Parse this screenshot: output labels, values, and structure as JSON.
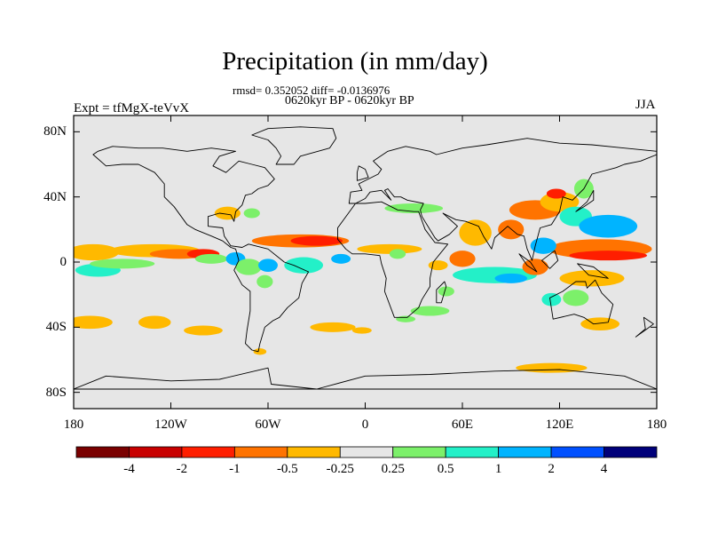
{
  "title": "Precipitation (in mm/day)",
  "stats_line": "rmsd= 0.352052 diff= -0.0136976",
  "period_line": "0620kyr BP - 0620kyr BP",
  "experiment": "Expt = tfMgX-teVvX",
  "season": "JJA",
  "map": {
    "projection": "cylindrical-equidistant",
    "lon_range": [
      -180,
      180
    ],
    "lat_range": [
      -90,
      90
    ],
    "background_color": "#e6e6e6",
    "y_ticks": [
      {
        "lat": 80,
        "label": "80N"
      },
      {
        "lat": 40,
        "label": "40N"
      },
      {
        "lat": 0,
        "label": "0"
      },
      {
        "lat": -40,
        "label": "40S"
      },
      {
        "lat": -80,
        "label": "80S"
      }
    ],
    "x_ticks": [
      {
        "lon": -180,
        "label": "180"
      },
      {
        "lon": -120,
        "label": "120W"
      },
      {
        "lon": -60,
        "label": "60W"
      },
      {
        "lon": 0,
        "label": "0"
      },
      {
        "lon": 60,
        "label": "60E"
      },
      {
        "lon": 120,
        "label": "120E"
      },
      {
        "lon": 180,
        "label": "180"
      }
    ]
  },
  "colorbar": {
    "colors": [
      "#7a0000",
      "#c80000",
      "#ff1e00",
      "#ff7300",
      "#ffb900",
      "#e6e6e6",
      "#7cf06a",
      "#23f0c8",
      "#00b4ff",
      "#0050ff",
      "#00007a"
    ],
    "labels": [
      "-4",
      "-2",
      "-1",
      "-0.5",
      "-0.25",
      "0.25",
      "0.5",
      "1",
      "2",
      "4"
    ]
  },
  "anomaly_regions": [
    {
      "lon": -168,
      "lat": 6,
      "rx": 16,
      "ry": 5,
      "color": "#ffb900"
    },
    {
      "lon": -130,
      "lat": 7,
      "rx": 28,
      "ry": 4,
      "color": "#ffb900"
    },
    {
      "lon": -115,
      "lat": 5,
      "rx": 18,
      "ry": 3,
      "color": "#ff7300"
    },
    {
      "lon": -100,
      "lat": 5,
      "rx": 10,
      "ry": 3,
      "color": "#ff1e00"
    },
    {
      "lon": -165,
      "lat": -5,
      "rx": 14,
      "ry": 4,
      "color": "#23f0c8"
    },
    {
      "lon": -150,
      "lat": -1,
      "rx": 20,
      "ry": 3,
      "color": "#7cf06a"
    },
    {
      "lon": -95,
      "lat": 2,
      "rx": 10,
      "ry": 3,
      "color": "#7cf06a"
    },
    {
      "lon": -80,
      "lat": 2,
      "rx": 6,
      "ry": 4,
      "color": "#00b4ff"
    },
    {
      "lon": -72,
      "lat": -3,
      "rx": 8,
      "ry": 5,
      "color": "#7cf06a"
    },
    {
      "lon": -60,
      "lat": -2,
      "rx": 6,
      "ry": 4,
      "color": "#00b4ff"
    },
    {
      "lon": -62,
      "lat": -12,
      "rx": 5,
      "ry": 4,
      "color": "#7cf06a"
    },
    {
      "lon": -85,
      "lat": 30,
      "rx": 8,
      "ry": 4,
      "color": "#ffb900"
    },
    {
      "lon": -70,
      "lat": 30,
      "rx": 5,
      "ry": 3,
      "color": "#7cf06a"
    },
    {
      "lon": -40,
      "lat": 13,
      "rx": 30,
      "ry": 4,
      "color": "#ff7300"
    },
    {
      "lon": -30,
      "lat": 13,
      "rx": 16,
      "ry": 3,
      "color": "#ff1e00"
    },
    {
      "lon": -38,
      "lat": -2,
      "rx": 12,
      "ry": 5,
      "color": "#23f0c8"
    },
    {
      "lon": -15,
      "lat": 2,
      "rx": 6,
      "ry": 3,
      "color": "#00b4ff"
    },
    {
      "lon": 15,
      "lat": 8,
      "rx": 20,
      "ry": 3,
      "color": "#ffb900"
    },
    {
      "lon": 30,
      "lat": 33,
      "rx": 18,
      "ry": 3,
      "color": "#7cf06a"
    },
    {
      "lon": 20,
      "lat": 5,
      "rx": 5,
      "ry": 3,
      "color": "#7cf06a"
    },
    {
      "lon": 45,
      "lat": -2,
      "rx": 6,
      "ry": 3,
      "color": "#ffb900"
    },
    {
      "lon": 50,
      "lat": -18,
      "rx": 5,
      "ry": 3,
      "color": "#7cf06a"
    },
    {
      "lon": 40,
      "lat": -30,
      "rx": 12,
      "ry": 3,
      "color": "#7cf06a"
    },
    {
      "lon": 68,
      "lat": 18,
      "rx": 10,
      "ry": 8,
      "color": "#ffb900"
    },
    {
      "lon": 60,
      "lat": 2,
      "rx": 8,
      "ry": 5,
      "color": "#ff7300"
    },
    {
      "lon": 80,
      "lat": -8,
      "rx": 26,
      "ry": 5,
      "color": "#23f0c8"
    },
    {
      "lon": 90,
      "lat": -10,
      "rx": 10,
      "ry": 3,
      "color": "#00b4ff"
    },
    {
      "lon": 90,
      "lat": 20,
      "rx": 8,
      "ry": 6,
      "color": "#ff7300"
    },
    {
      "lon": 105,
      "lat": 32,
      "rx": 16,
      "ry": 6,
      "color": "#ff7300"
    },
    {
      "lon": 120,
      "lat": 37,
      "rx": 12,
      "ry": 6,
      "color": "#ffb900"
    },
    {
      "lon": 118,
      "lat": 42,
      "rx": 6,
      "ry": 3,
      "color": "#ff1e00"
    },
    {
      "lon": 130,
      "lat": 28,
      "rx": 10,
      "ry": 6,
      "color": "#23f0c8"
    },
    {
      "lon": 135,
      "lat": 45,
      "rx": 6,
      "ry": 6,
      "color": "#7cf06a"
    },
    {
      "lon": 150,
      "lat": 22,
      "rx": 18,
      "ry": 7,
      "color": "#00b4ff"
    },
    {
      "lon": 145,
      "lat": 8,
      "rx": 32,
      "ry": 6,
      "color": "#ff7300"
    },
    {
      "lon": 150,
      "lat": 4,
      "rx": 24,
      "ry": 3,
      "color": "#ff1e00"
    },
    {
      "lon": 110,
      "lat": 10,
      "rx": 8,
      "ry": 5,
      "color": "#00b4ff"
    },
    {
      "lon": 105,
      "lat": -3,
      "rx": 8,
      "ry": 5,
      "color": "#ff7300"
    },
    {
      "lon": 140,
      "lat": -10,
      "rx": 20,
      "ry": 5,
      "color": "#ffb900"
    },
    {
      "lon": 115,
      "lat": -23,
      "rx": 6,
      "ry": 4,
      "color": "#23f0c8"
    },
    {
      "lon": 130,
      "lat": -22,
      "rx": 8,
      "ry": 5,
      "color": "#7cf06a"
    },
    {
      "lon": 145,
      "lat": -38,
      "rx": 12,
      "ry": 4,
      "color": "#ffb900"
    },
    {
      "lon": -170,
      "lat": -37,
      "rx": 14,
      "ry": 4,
      "color": "#ffb900"
    },
    {
      "lon": -130,
      "lat": -37,
      "rx": 10,
      "ry": 4,
      "color": "#ffb900"
    },
    {
      "lon": -100,
      "lat": -42,
      "rx": 12,
      "ry": 3,
      "color": "#ffb900"
    },
    {
      "lon": -20,
      "lat": -40,
      "rx": 14,
      "ry": 3,
      "color": "#ffb900"
    },
    {
      "lon": 25,
      "lat": -35,
      "rx": 6,
      "ry": 2,
      "color": "#7cf06a"
    },
    {
      "lon": 115,
      "lat": -65,
      "rx": 22,
      "ry": 3,
      "color": "#ffb900"
    },
    {
      "lon": -2,
      "lat": -42,
      "rx": 6,
      "ry": 2,
      "color": "#ffb900"
    },
    {
      "lon": -65,
      "lat": -55,
      "rx": 4,
      "ry": 2,
      "color": "#ffb900"
    }
  ],
  "coastlines": [
    [
      [
        -168,
        66
      ],
      [
        -160,
        59
      ],
      [
        -150,
        60
      ],
      [
        -140,
        60
      ],
      [
        -130,
        55
      ],
      [
        -124,
        48
      ],
      [
        -124,
        40
      ],
      [
        -118,
        34
      ],
      [
        -110,
        23
      ],
      [
        -105,
        20
      ],
      [
        -95,
        16
      ],
      [
        -88,
        13
      ],
      [
        -83,
        9
      ],
      [
        -80,
        8
      ],
      [
        -78,
        1
      ],
      [
        -81,
        -5
      ],
      [
        -76,
        -14
      ],
      [
        -71,
        -18
      ],
      [
        -71,
        -30
      ],
      [
        -73,
        -42
      ],
      [
        -74,
        -50
      ],
      [
        -70,
        -54
      ],
      [
        -66,
        -55
      ],
      [
        -65,
        -50
      ],
      [
        -62,
        -40
      ],
      [
        -57,
        -36
      ],
      [
        -53,
        -34
      ],
      [
        -48,
        -28
      ],
      [
        -41,
        -22
      ],
      [
        -39,
        -13
      ],
      [
        -35,
        -6
      ],
      [
        -44,
        -2
      ],
      [
        -50,
        0
      ],
      [
        -60,
        8
      ],
      [
        -72,
        11
      ],
      [
        -76,
        9
      ],
      [
        -83,
        10
      ],
      [
        -87,
        16
      ],
      [
        -88,
        21
      ],
      [
        -97,
        22
      ],
      [
        -97,
        28
      ],
      [
        -90,
        30
      ],
      [
        -83,
        29
      ],
      [
        -81,
        25
      ],
      [
        -80,
        31
      ],
      [
        -76,
        35
      ],
      [
        -74,
        41
      ],
      [
        -70,
        42
      ],
      [
        -66,
        45
      ],
      [
        -60,
        47
      ],
      [
        -56,
        51
      ],
      [
        -62,
        58
      ],
      [
        -70,
        60
      ],
      [
        -78,
        62
      ],
      [
        -86,
        55
      ],
      [
        -94,
        59
      ],
      [
        -90,
        65
      ],
      [
        -80,
        68
      ],
      [
        -95,
        70
      ],
      [
        -110,
        68
      ],
      [
        -125,
        70
      ],
      [
        -140,
        70
      ],
      [
        -156,
        71
      ],
      [
        -165,
        68
      ],
      [
        -168,
        66
      ]
    ],
    [
      [
        -55,
        60
      ],
      [
        -44,
        60
      ],
      [
        -40,
        65
      ],
      [
        -22,
        70
      ],
      [
        -18,
        76
      ],
      [
        -20,
        82
      ],
      [
        -40,
        83
      ],
      [
        -60,
        82
      ],
      [
        -70,
        78
      ],
      [
        -60,
        75
      ],
      [
        -55,
        70
      ],
      [
        -52,
        65
      ],
      [
        -55,
        60
      ]
    ],
    [
      [
        -10,
        36
      ],
      [
        -9,
        43
      ],
      [
        -2,
        44
      ],
      [
        -4,
        48
      ],
      [
        2,
        51
      ],
      [
        8,
        54
      ],
      [
        10,
        57
      ],
      [
        5,
        62
      ],
      [
        14,
        68
      ],
      [
        25,
        71
      ],
      [
        40,
        68
      ],
      [
        44,
        66
      ],
      [
        60,
        70
      ],
      [
        75,
        72
      ],
      [
        100,
        76
      ],
      [
        120,
        73
      ],
      [
        140,
        72
      ],
      [
        160,
        70
      ],
      [
        180,
        68
      ],
      [
        180,
        66
      ],
      [
        170,
        62
      ],
      [
        160,
        60
      ],
      [
        155,
        58
      ],
      [
        140,
        54
      ],
      [
        135,
        45
      ],
      [
        128,
        38
      ],
      [
        122,
        40
      ],
      [
        120,
        31
      ],
      [
        115,
        23
      ],
      [
        108,
        21
      ],
      [
        105,
        10
      ],
      [
        103,
        1
      ],
      [
        100,
        8
      ],
      [
        98,
        16
      ],
      [
        94,
        17
      ],
      [
        88,
        22
      ],
      [
        80,
        15
      ],
      [
        78,
        8
      ],
      [
        73,
        16
      ],
      [
        70,
        22
      ],
      [
        62,
        25
      ],
      [
        56,
        26
      ],
      [
        52,
        28
      ],
      [
        48,
        30
      ],
      [
        57,
        22
      ],
      [
        52,
        17
      ],
      [
        45,
        13
      ],
      [
        43,
        15
      ],
      [
        35,
        28
      ],
      [
        34,
        32
      ],
      [
        36,
        36
      ],
      [
        26,
        38
      ],
      [
        22,
        40
      ],
      [
        18,
        40
      ],
      [
        14,
        45
      ],
      [
        12,
        44
      ],
      [
        16,
        38
      ],
      [
        10,
        44
      ],
      [
        3,
        43
      ],
      [
        0,
        39
      ],
      [
        -6,
        36
      ],
      [
        -10,
        36
      ]
    ],
    [
      [
        -6,
        36
      ],
      [
        -17,
        21
      ],
      [
        -17,
        14
      ],
      [
        -12,
        8
      ],
      [
        -8,
        5
      ],
      [
        0,
        5
      ],
      [
        9,
        4
      ],
      [
        10,
        -1
      ],
      [
        13,
        -10
      ],
      [
        12,
        -18
      ],
      [
        18,
        -34
      ],
      [
        26,
        -34
      ],
      [
        33,
        -28
      ],
      [
        35,
        -23
      ],
      [
        40,
        -15
      ],
      [
        40,
        -10
      ],
      [
        42,
        0
      ],
      [
        51,
        11
      ],
      [
        43,
        12
      ],
      [
        37,
        20
      ],
      [
        33,
        31
      ],
      [
        30,
        31
      ],
      [
        20,
        32
      ],
      [
        10,
        37
      ],
      [
        0,
        36
      ],
      [
        -6,
        36
      ]
    ],
    [
      [
        114,
        -22
      ],
      [
        122,
        -18
      ],
      [
        130,
        -12
      ],
      [
        136,
        -12
      ],
      [
        137,
        -16
      ],
      [
        142,
        -11
      ],
      [
        146,
        -19
      ],
      [
        153,
        -26
      ],
      [
        150,
        -37
      ],
      [
        141,
        -38
      ],
      [
        135,
        -34
      ],
      [
        129,
        -32
      ],
      [
        116,
        -35
      ],
      [
        114,
        -22
      ]
    ],
    [
      [
        -5,
        50
      ],
      [
        2,
        52
      ],
      [
        0,
        57
      ],
      [
        -4,
        59
      ],
      [
        -5,
        55
      ],
      [
        -5,
        50
      ]
    ],
    [
      [
        130,
        31
      ],
      [
        135,
        34
      ],
      [
        141,
        38
      ],
      [
        141,
        44
      ],
      [
        137,
        37
      ],
      [
        130,
        31
      ]
    ],
    [
      [
        44,
        -25
      ],
      [
        47,
        -25
      ],
      [
        50,
        -15
      ],
      [
        49,
        -12
      ],
      [
        44,
        -17
      ],
      [
        44,
        -25
      ]
    ],
    [
      [
        95,
        5
      ],
      [
        102,
        0
      ],
      [
        106,
        -6
      ],
      [
        100,
        -2
      ],
      [
        95,
        5
      ]
    ],
    [
      [
        109,
        1
      ],
      [
        117,
        7
      ],
      [
        119,
        1
      ],
      [
        114,
        -4
      ],
      [
        109,
        1
      ]
    ],
    [
      [
        131,
        -1
      ],
      [
        141,
        -3
      ],
      [
        150,
        -10
      ],
      [
        138,
        -8
      ],
      [
        131,
        -1
      ]
    ],
    [
      [
        167,
        -46
      ],
      [
        174,
        -41
      ],
      [
        178,
        -38
      ],
      [
        172,
        -34
      ],
      [
        173,
        -41
      ],
      [
        167,
        -46
      ]
    ],
    [
      [
        -160,
        -70
      ],
      [
        -120,
        -73
      ],
      [
        -90,
        -72
      ],
      [
        -60,
        -65
      ],
      [
        -58,
        -75
      ],
      [
        -30,
        -78
      ],
      [
        0,
        -70
      ],
      [
        40,
        -69
      ],
      [
        80,
        -67
      ],
      [
        120,
        -66
      ],
      [
        160,
        -70
      ],
      [
        180,
        -78
      ],
      [
        -180,
        -78
      ],
      [
        -160,
        -70
      ]
    ]
  ]
}
